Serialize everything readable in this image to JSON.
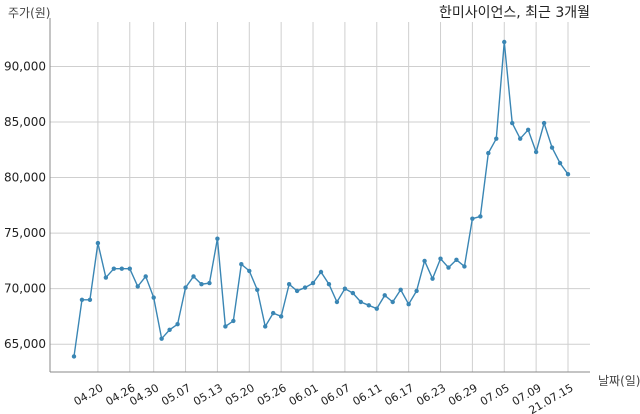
{
  "chart_data": {
    "type": "line",
    "title": "한미사이언스, 최근 3개월",
    "ylabel": "주가(원)",
    "xlabel": "날짜(일)",
    "ylim": [
      62500,
      94000
    ],
    "yticks": [
      65000,
      70000,
      75000,
      80000,
      85000,
      90000
    ],
    "ytick_labels": [
      "65,000",
      "70,000",
      "75,000",
      "80,000",
      "85,000",
      "90,000"
    ],
    "xtick_labels": [
      "04.20",
      "04.26",
      "04.30",
      "05.07",
      "05.13",
      "05.20",
      "05.26",
      "06.01",
      "06.07",
      "06.11",
      "06.17",
      "06.23",
      "06.29",
      "07.05",
      "07.09",
      "21.07.15"
    ],
    "xtick_index": [
      3,
      7,
      10,
      14,
      18,
      22,
      26,
      30,
      34,
      38,
      42,
      46,
      50,
      54,
      58,
      62
    ],
    "grid": true,
    "color": "#3a86b4",
    "series": [
      {
        "values": [
          63900,
          69000,
          69000,
          74100,
          71000,
          71800,
          71800,
          71800,
          70200,
          71100,
          69200,
          65500,
          66300,
          66800,
          70100,
          71100,
          70400,
          70500,
          74500,
          66600,
          67100,
          72200,
          71600,
          69900,
          66600,
          67800,
          67500,
          70400,
          69800,
          70100,
          70500,
          71500,
          70400,
          68800,
          70000,
          69600,
          68800,
          68500,
          68200,
          69400,
          68800,
          69900,
          68600,
          69800,
          72500,
          70900,
          72700,
          71900,
          72600,
          72000,
          76300,
          76500,
          82200,
          83500,
          92200,
          84900,
          83500,
          84300,
          82300,
          84900,
          82700,
          81300,
          80300
        ]
      }
    ]
  }
}
